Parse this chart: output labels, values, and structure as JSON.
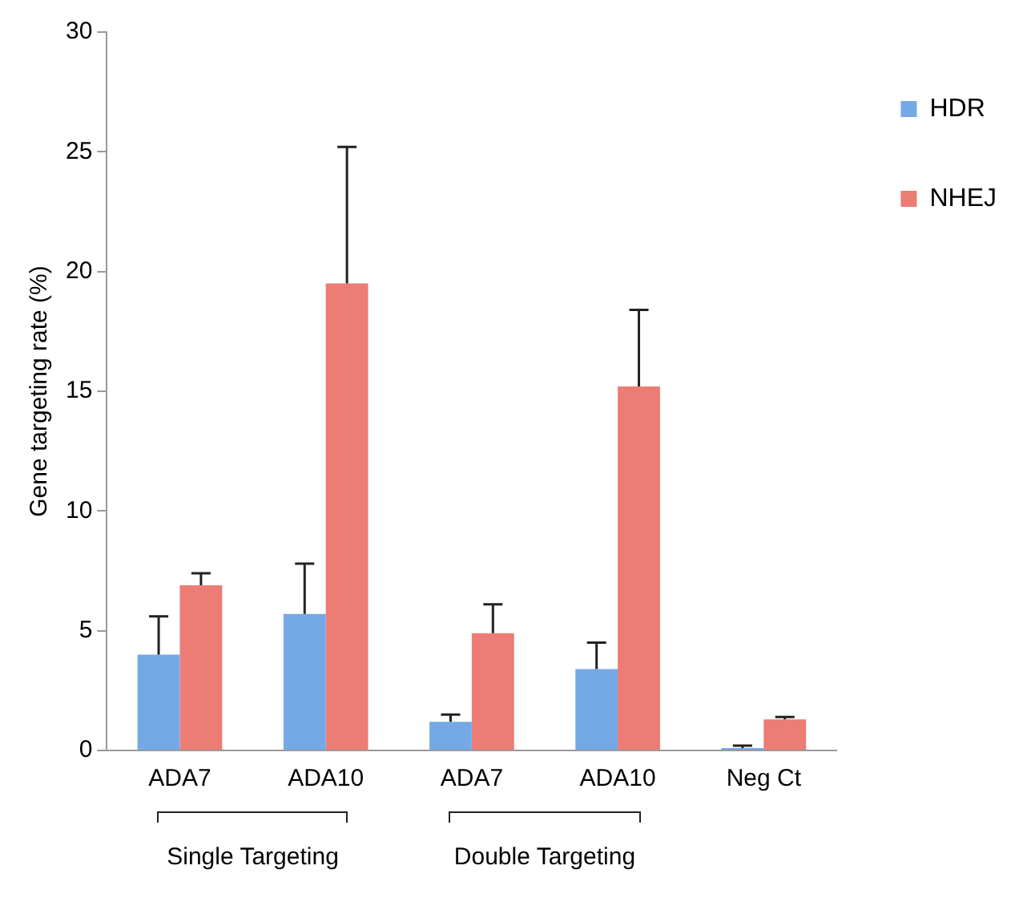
{
  "chart_data": {
    "type": "bar",
    "ylabel": "Gene targeting rate (%)",
    "categories": [
      "ADA7",
      "ADA10",
      "ADA7",
      "ADA10",
      "Neg Ct"
    ],
    "series": [
      {
        "name": "HDR",
        "color": "#74a9e6",
        "values": [
          4.0,
          5.7,
          1.2,
          3.4,
          0.1
        ],
        "errors": [
          [
            4.0,
            5.6
          ],
          [
            5.7,
            7.8
          ],
          [
            1.2,
            1.5
          ],
          [
            3.4,
            4.5
          ],
          [
            0.1,
            0.2
          ]
        ]
      },
      {
        "name": "NHEJ",
        "color": "#ec7c74",
        "values": [
          6.9,
          19.5,
          4.9,
          15.2,
          1.3
        ],
        "errors": [
          [
            6.9,
            7.4
          ],
          [
            19.5,
            25.2
          ],
          [
            4.9,
            6.1
          ],
          [
            15.2,
            18.4
          ],
          [
            1.3,
            1.4
          ]
        ]
      }
    ],
    "ylim": [
      0,
      30
    ],
    "yticks": [
      0,
      5,
      10,
      15,
      20,
      25,
      30
    ],
    "grid": false,
    "legend": "top right",
    "annotations": [
      "Single Targeting",
      "Double Targeting"
    ]
  }
}
